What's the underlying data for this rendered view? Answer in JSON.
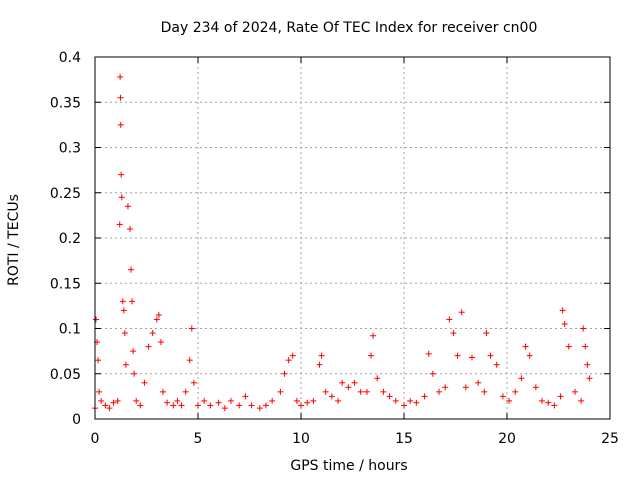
{
  "chart_data": {
    "type": "scatter",
    "title": "Day 234 of 2024, Rate Of TEC Index for receiver cn00",
    "xlabel": "GPS time / hours",
    "ylabel": "ROTI / TECUs",
    "xlim": [
      0,
      25
    ],
    "ylim": [
      0,
      0.4
    ],
    "x_ticks": [
      0,
      5,
      10,
      15,
      20,
      25
    ],
    "x_tick_labels": [
      "0",
      "5",
      "10",
      "15",
      "20",
      "25"
    ],
    "y_ticks": [
      0,
      0.05,
      0.1,
      0.15,
      0.2,
      0.25,
      0.3,
      0.35,
      0.4
    ],
    "y_tick_labels": [
      "0",
      "0.05",
      "0.1",
      "0.15",
      "0.2",
      "0.25",
      "0.3",
      "0.35",
      "0.4"
    ],
    "grid": true,
    "marker": "+",
    "marker_color": "#ff0000",
    "series": [
      {
        "name": "ROTI",
        "x": [
          0.0,
          0.05,
          0.1,
          0.15,
          0.2,
          0.3,
          0.5,
          0.7,
          0.9,
          1.1,
          1.2,
          1.22,
          1.24,
          1.25,
          1.27,
          1.3,
          1.35,
          1.4,
          1.45,
          1.5,
          1.6,
          1.7,
          1.75,
          1.8,
          1.85,
          1.9,
          2.0,
          2.2,
          2.4,
          2.6,
          2.8,
          3.0,
          3.1,
          3.2,
          3.3,
          3.5,
          3.8,
          4.0,
          4.2,
          4.4,
          4.6,
          4.7,
          4.8,
          5.0,
          5.3,
          5.6,
          6.0,
          6.3,
          6.6,
          7.0,
          7.3,
          7.6,
          8.0,
          8.3,
          8.6,
          9.0,
          9.2,
          9.4,
          9.6,
          9.8,
          10.0,
          10.3,
          10.6,
          10.9,
          11.0,
          11.2,
          11.5,
          11.8,
          12.0,
          12.3,
          12.6,
          12.9,
          13.2,
          13.4,
          13.5,
          13.7,
          14.0,
          14.3,
          14.6,
          15.0,
          15.3,
          15.6,
          16.0,
          16.2,
          16.4,
          16.7,
          17.0,
          17.2,
          17.4,
          17.6,
          17.8,
          18.0,
          18.3,
          18.6,
          18.9,
          19.0,
          19.2,
          19.5,
          19.8,
          20.1,
          20.4,
          20.7,
          20.9,
          21.1,
          21.4,
          21.7,
          22.0,
          22.3,
          22.6,
          22.7,
          22.8,
          23.0,
          23.3,
          23.6,
          23.7,
          23.8,
          23.9,
          24.0
        ],
        "y": [
          0.012,
          0.11,
          0.085,
          0.065,
          0.03,
          0.02,
          0.015,
          0.012,
          0.018,
          0.02,
          0.215,
          0.378,
          0.355,
          0.325,
          0.27,
          0.245,
          0.13,
          0.12,
          0.095,
          0.06,
          0.235,
          0.21,
          0.165,
          0.13,
          0.075,
          0.05,
          0.02,
          0.015,
          0.04,
          0.08,
          0.095,
          0.11,
          0.115,
          0.085,
          0.03,
          0.018,
          0.015,
          0.02,
          0.015,
          0.03,
          0.065,
          0.1,
          0.04,
          0.015,
          0.02,
          0.015,
          0.018,
          0.012,
          0.02,
          0.015,
          0.025,
          0.015,
          0.012,
          0.015,
          0.02,
          0.03,
          0.05,
          0.065,
          0.07,
          0.02,
          0.015,
          0.018,
          0.02,
          0.06,
          0.07,
          0.03,
          0.025,
          0.02,
          0.04,
          0.035,
          0.04,
          0.03,
          0.03,
          0.07,
          0.092,
          0.045,
          0.03,
          0.025,
          0.02,
          0.015,
          0.02,
          0.018,
          0.025,
          0.072,
          0.05,
          0.03,
          0.035,
          0.11,
          0.095,
          0.07,
          0.118,
          0.035,
          0.068,
          0.04,
          0.03,
          0.095,
          0.07,
          0.06,
          0.025,
          0.02,
          0.03,
          0.045,
          0.08,
          0.07,
          0.035,
          0.02,
          0.018,
          0.015,
          0.025,
          0.12,
          0.105,
          0.08,
          0.03,
          0.02,
          0.1,
          0.08,
          0.06,
          0.045
        ]
      }
    ]
  }
}
